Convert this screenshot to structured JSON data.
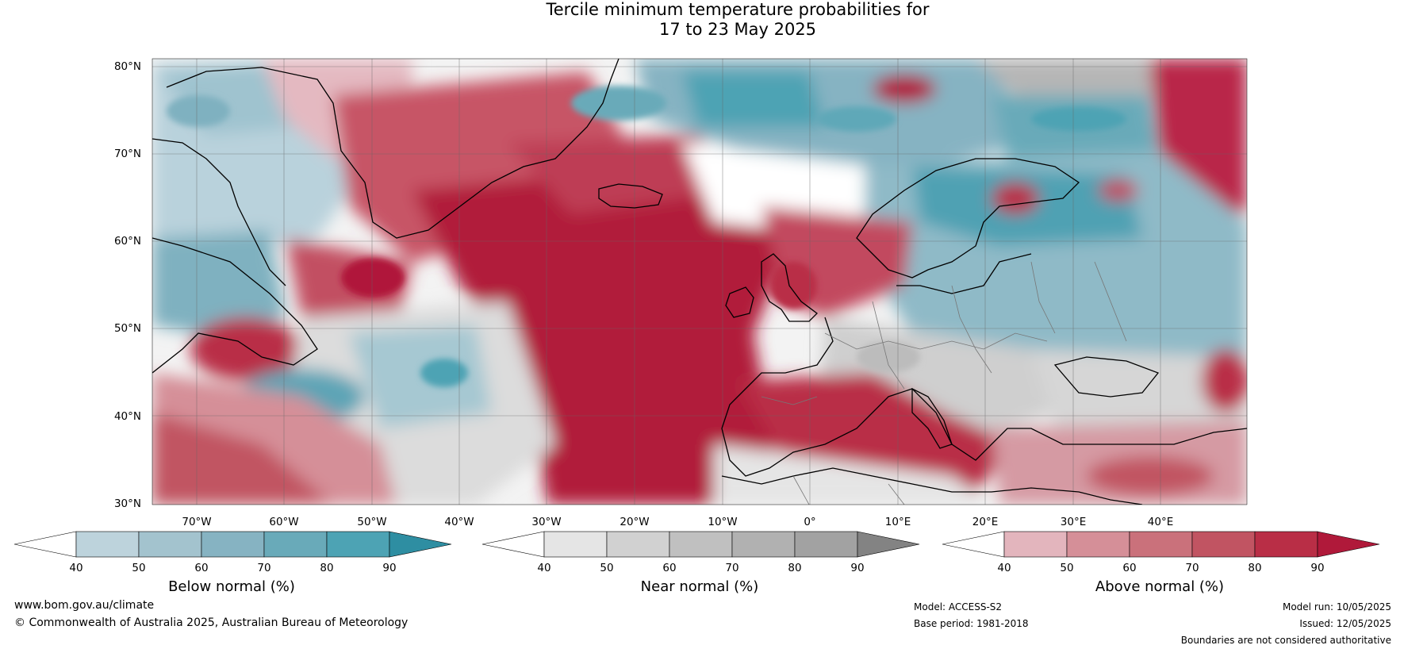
{
  "title": {
    "line1": "Tercile minimum temperature probabilities for",
    "line2": "17 to 23 May 2025"
  },
  "map": {
    "lat_labels": [
      "80°N",
      "70°N",
      "60°N",
      "50°N",
      "40°N",
      "30°N"
    ],
    "lon_labels": [
      "70°W",
      "60°W",
      "50°W",
      "40°W",
      "30°W",
      "20°W",
      "10°W",
      "0°",
      "10°E",
      "20°E",
      "30°E",
      "40°E"
    ],
    "land_color": "#c6c6c6",
    "ocean_color": "#ffffff"
  },
  "colorbars": [
    {
      "label": "Below normal (%)",
      "ticks": [
        "40",
        "50",
        "60",
        "70",
        "80",
        "90"
      ],
      "colors": [
        "#ffffff",
        "#bdd3dc",
        "#a3c3ce",
        "#86b3c2",
        "#69aab9",
        "#4da3b4",
        "#2e8ea2"
      ]
    },
    {
      "label": "Near normal (%)",
      "ticks": [
        "40",
        "50",
        "60",
        "70",
        "80",
        "90"
      ],
      "colors": [
        "#ffffff",
        "#e5e5e5",
        "#d1d1d1",
        "#c0c0c0",
        "#b1b1b1",
        "#a2a2a2",
        "#838383"
      ]
    },
    {
      "label": "Above normal (%)",
      "ticks": [
        "40",
        "50",
        "60",
        "70",
        "80",
        "90"
      ],
      "colors": [
        "#ffffff",
        "#e3b5bd",
        "#d58f98",
        "#ca717b",
        "#c15462",
        "#b92e46",
        "#b0193a"
      ]
    }
  ],
  "footer": {
    "website": "www.bom.gov.au/climate",
    "copyright": "© Commonwealth of Australia 2025, Australian Bureau of Meteorology",
    "model": "Model: ACCESS-S2",
    "base_period": "Base period: 1981-2018",
    "model_run": "Model run: 10/05/2025",
    "issued": "Issued: 12/05/2025",
    "disclaimer": "Boundaries are not considered authoritative"
  }
}
